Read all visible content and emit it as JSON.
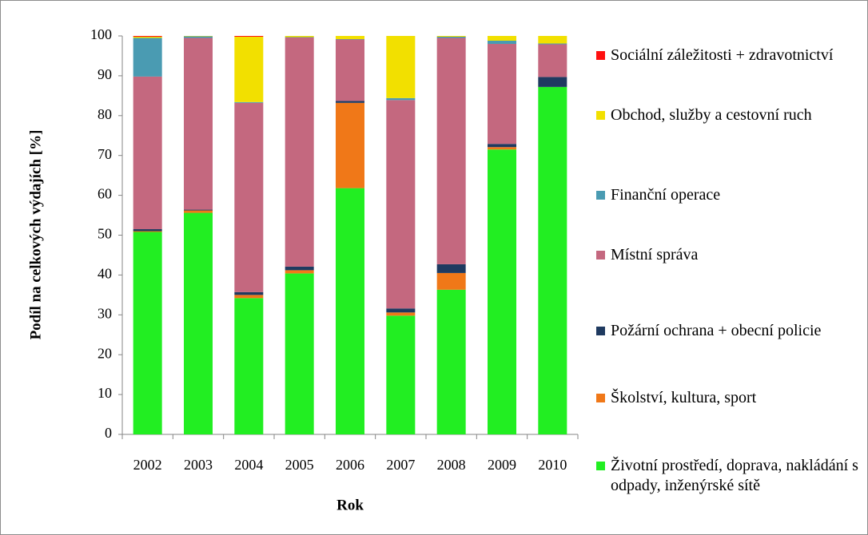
{
  "chart_data": {
    "type": "bar",
    "stacked": true,
    "x_label": "Rok",
    "y_label": "Podíl na celkových výdajích [%]",
    "categories": [
      "2002",
      "2003",
      "2004",
      "2005",
      "2006",
      "2007",
      "2008",
      "2009",
      "2010"
    ],
    "series": [
      {
        "name": "Životní prostředí, doprava, nakládání s odpady, inženýrské sítě",
        "color": "#22ee22",
        "values": [
          50.8,
          55.6,
          34.2,
          40.4,
          61.8,
          29.8,
          36.3,
          71.5,
          87.2
        ]
      },
      {
        "name": "Školství, kultura, sport",
        "color": "#f07818",
        "values": [
          0.2,
          0.6,
          0.8,
          0.8,
          21.4,
          0.8,
          4.2,
          0.6,
          0
        ]
      },
      {
        "name": "Požární ochrana + obecní policie",
        "color": "#1f3a60",
        "values": [
          0.5,
          0.2,
          0.7,
          0.9,
          0.5,
          1.0,
          2.2,
          0.8,
          2.5
        ]
      },
      {
        "name": "Místní správa",
        "color": "#c4687f",
        "values": [
          38.3,
          43.1,
          47.5,
          57.5,
          15.4,
          52.3,
          56.8,
          25.1,
          8.2
        ]
      },
      {
        "name": "Finanční operace",
        "color": "#4a9bb2",
        "values": [
          9.7,
          0.4,
          0.2,
          0.1,
          0.1,
          0.5,
          0.3,
          0.8,
          0.2
        ]
      },
      {
        "name": "Obchod, služby a cestovní ruch",
        "color": "#f2e000",
        "values": [
          0.3,
          0.1,
          16.4,
          0.3,
          0.8,
          15.6,
          0.2,
          1.2,
          1.9
        ]
      },
      {
        "name": "Sociální záležitosti + zdravotnictví",
        "color": "#ff1010",
        "values": [
          0.2,
          0,
          0.2,
          0,
          0,
          0,
          0,
          0,
          0
        ]
      }
    ],
    "ylim": [
      0,
      100
    ],
    "yticks": [
      0,
      10,
      20,
      30,
      40,
      50,
      60,
      70,
      80,
      90,
      100
    ],
    "legend": "right"
  }
}
